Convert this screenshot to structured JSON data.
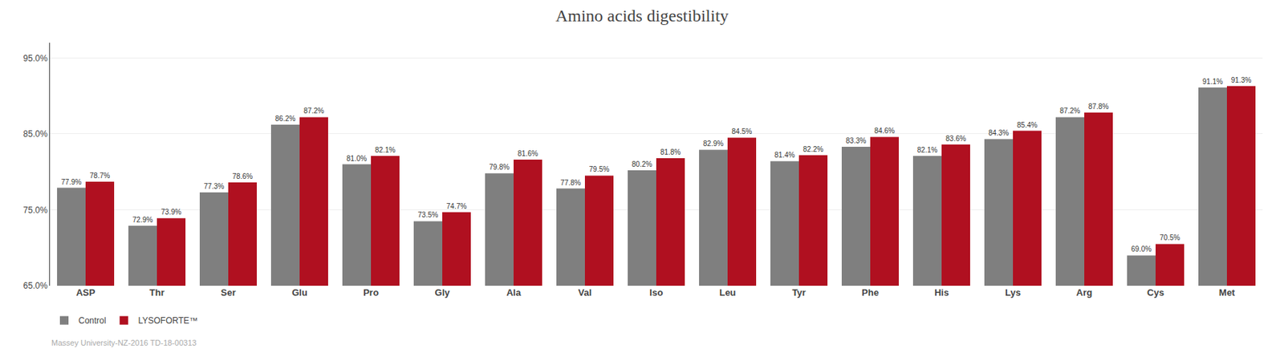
{
  "chart_data": {
    "type": "bar",
    "title": "Amino acids digestibility",
    "categories": [
      "ASP",
      "Thr",
      "Ser",
      "Glu",
      "Pro",
      "Gly",
      "Ala",
      "Val",
      "Iso",
      "Leu",
      "Tyr",
      "Phe",
      "His",
      "Lys",
      "Arg",
      "Cys",
      "Met"
    ],
    "series": [
      {
        "name": "Control",
        "color": "#7f7f7f",
        "values": [
          77.9,
          72.9,
          77.3,
          86.2,
          81.0,
          73.5,
          79.8,
          77.8,
          80.2,
          82.9,
          81.4,
          83.3,
          82.1,
          84.3,
          87.2,
          69.0,
          91.1
        ],
        "value_labels": [
          "77.9%",
          "72.9%",
          "77.3%",
          "86.2%",
          "81.0%",
          "73.5%",
          "79.8%",
          "77.8%",
          "80.2%",
          "82.9%",
          "81.4%",
          "83.3%",
          "82.1%",
          "84.3%",
          "87.2%",
          "69.0%",
          "91.1%"
        ]
      },
      {
        "name": "LYSOFORTE™",
        "color": "#b01020",
        "values": [
          78.7,
          73.9,
          78.6,
          87.2,
          82.1,
          74.7,
          81.6,
          79.5,
          81.8,
          84.5,
          82.2,
          84.6,
          83.6,
          85.4,
          87.8,
          70.5,
          91.3
        ],
        "value_labels": [
          "78.7%",
          "73.9%",
          "78.6%",
          "87.2%",
          "82.1%",
          "74.7%",
          "81.6%",
          "79.5%",
          "81.8%",
          "84.5%",
          "82.2%",
          "84.6%",
          "83.6%",
          "85.4%",
          "87.8%",
          "70.5%",
          "91.3%"
        ]
      }
    ],
    "ylim": [
      65.0,
      97.0
    ],
    "yticks": [
      {
        "value": 65.0,
        "label": "65.0%"
      },
      {
        "value": 75.0,
        "label": "75.0%"
      },
      {
        "value": 85.0,
        "label": "85.0%"
      },
      {
        "value": 95.0,
        "label": "95.0%"
      }
    ],
    "grid": true,
    "legend": "bottom",
    "data_labels": true,
    "annotations": [
      "Massey University-NZ-2016 TD-18-00313"
    ]
  }
}
